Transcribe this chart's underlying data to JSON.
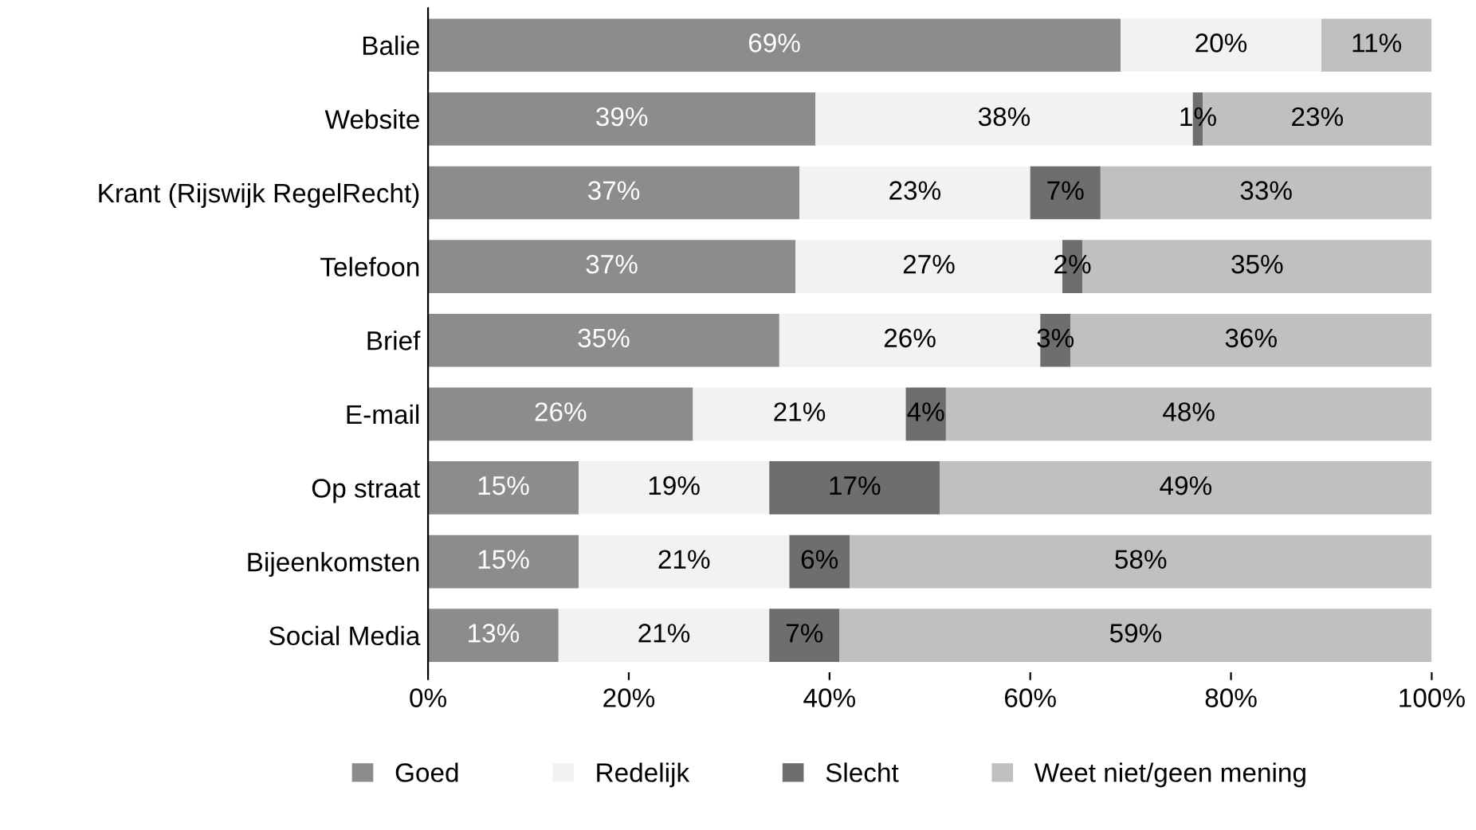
{
  "chart_data": {
    "type": "bar",
    "orientation": "horizontal",
    "stacked": true,
    "categories": [
      "Balie",
      "Website",
      "Krant (Rijswijk RegelRecht)",
      "Telefoon",
      "Brief",
      "E-mail",
      "Op straat",
      "Bijeenkomsten",
      "Social Media"
    ],
    "series": [
      {
        "name": "Goed",
        "color": "#8c8c8c",
        "values": [
          69,
          38.6,
          37,
          36.6,
          35,
          26.4,
          15,
          15,
          13
        ],
        "value_labels": [
          "69%",
          "39%",
          "37%",
          "37%",
          "35%",
          "26%",
          "15%",
          "15%",
          "13%"
        ]
      },
      {
        "name": "Redelijk",
        "color": "#f2f2f2",
        "values": [
          20,
          37.6,
          23,
          26.6,
          26,
          21.2,
          19,
          21,
          21
        ],
        "value_labels": [
          "20%",
          "38%",
          "23%",
          "27%",
          "26%",
          "21%",
          "19%",
          "21%",
          "21%"
        ]
      },
      {
        "name": "Slecht",
        "color": "#6e6e6e",
        "values": [
          0,
          1,
          7,
          2,
          3,
          4,
          17,
          6,
          7
        ],
        "value_labels": [
          null,
          "1%",
          "7%",
          "2%",
          "3%",
          "4%",
          "17%",
          "6%",
          "7%"
        ]
      },
      {
        "name": "Weet niet/geen mening",
        "color": "#c0c0c0",
        "values": [
          11,
          22.8,
          33,
          34.8,
          36,
          48.4,
          49,
          58,
          59
        ],
        "value_labels": [
          "11%",
          "23%",
          "33%",
          "35%",
          "36%",
          "48%",
          "49%",
          "58%",
          "59%"
        ]
      }
    ],
    "xlim": [
      0,
      100
    ],
    "xticks": [
      {
        "value": 0,
        "label": "0%"
      },
      {
        "value": 20,
        "label": "20%"
      },
      {
        "value": 40,
        "label": "40%"
      },
      {
        "value": 60,
        "label": "60%"
      },
      {
        "value": 80,
        "label": "80%"
      },
      {
        "value": 100,
        "label": "100%"
      }
    ],
    "grid": false,
    "legend": "bottom"
  }
}
